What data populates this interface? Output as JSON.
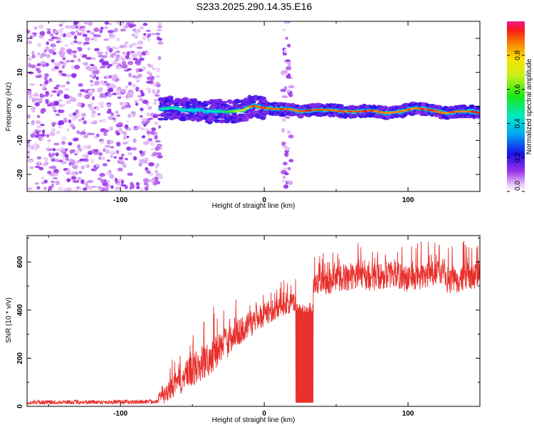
{
  "figure_title": "S233.2025.290.14.35.E16",
  "chart_data": [
    {
      "type": "heatmap",
      "title": "",
      "xlabel": "Height of straight line (km)",
      "ylabel": "Frequency (Hz)",
      "xlim": [
        -165,
        150
      ],
      "ylim": [
        -25,
        25
      ],
      "x_ticks": [
        -100,
        0,
        100
      ],
      "y_ticks": [
        -20,
        -10,
        0,
        10,
        20
      ],
      "colorbar": {
        "label": "Normalized spectral amplitude",
        "range": [
          0,
          1
        ],
        "ticks": [
          0.0,
          0.2,
          0.4,
          0.6,
          0.8
        ]
      },
      "noise_regions": [
        {
          "x_range": [
            -165,
            -72
          ],
          "y_range": [
            -25,
            25
          ],
          "amplitude": 0.2
        },
        {
          "x_range": [
            13,
            19
          ],
          "y_range": [
            -25,
            25
          ],
          "amplitude": 0.25
        }
      ],
      "ridge": {
        "x": [
          -72,
          -65,
          -55,
          -45,
          -35,
          -25,
          -15,
          -8,
          0,
          10,
          18,
          25,
          35,
          45,
          55,
          65,
          75,
          85,
          95,
          105,
          115,
          125,
          135,
          145,
          150
        ],
        "y": [
          -0.8,
          -0.5,
          -1.0,
          -1.2,
          -1.5,
          -1.6,
          -1.2,
          0.2,
          -0.5,
          -0.8,
          -0.8,
          -1.5,
          -1.0,
          -1.0,
          -1.5,
          -1.5,
          -1.2,
          -2.0,
          -1.5,
          -0.5,
          -1.0,
          -2.0,
          -1.5,
          -1.5,
          -2.0
        ],
        "amplitude": [
          0.45,
          0.5,
          0.45,
          0.4,
          0.45,
          0.6,
          0.75,
          0.95,
          0.95,
          0.95,
          0.95,
          0.95,
          0.95,
          0.9,
          0.95,
          0.95,
          0.95,
          0.95,
          0.9,
          0.95,
          0.95,
          0.95,
          0.95,
          0.95,
          0.95
        ]
      }
    },
    {
      "type": "line",
      "title": "",
      "xlabel": "Height of straight line (km)",
      "ylabel": "SNR (10 * v/v)",
      "xlim": [
        -165,
        150
      ],
      "ylim": [
        0,
        710
      ],
      "x_ticks": [
        -100,
        0,
        100
      ],
      "y_ticks": [
        0,
        200,
        400,
        600
      ],
      "color": "#e8302c",
      "series": [
        {
          "name": "SNR",
          "x": [
            -165,
            -140,
            -110,
            -90,
            -75,
            -70,
            -62,
            -55,
            -50,
            -45,
            -40,
            -35,
            -30,
            -25,
            -20,
            -15,
            -10,
            -5,
            0,
            5,
            10,
            15,
            20,
            22,
            23,
            30,
            31,
            35,
            40,
            45,
            50,
            60,
            70,
            80,
            90,
            100,
            110,
            120,
            130,
            140,
            150
          ],
          "y": [
            10,
            12,
            12,
            12,
            15,
            40,
            90,
            120,
            150,
            170,
            190,
            220,
            250,
            270,
            300,
            320,
            340,
            360,
            380,
            400,
            410,
            420,
            430,
            435,
            25,
            25,
            470,
            500,
            520,
            520,
            530,
            540,
            530,
            540,
            550,
            530,
            540,
            550,
            520,
            540,
            540
          ],
          "noise": [
            10,
            10,
            10,
            10,
            10,
            40,
            60,
            80,
            90,
            90,
            90,
            90,
            80,
            80,
            70,
            70,
            70,
            60,
            60,
            60,
            50,
            50,
            50,
            50,
            10,
            10,
            60,
            60,
            60,
            70,
            70,
            70,
            70,
            70,
            70,
            70,
            70,
            70,
            70,
            70,
            70
          ]
        }
      ],
      "dropout": {
        "x_range": [
          22,
          34
        ],
        "low": 15,
        "high": 430
      }
    }
  ]
}
